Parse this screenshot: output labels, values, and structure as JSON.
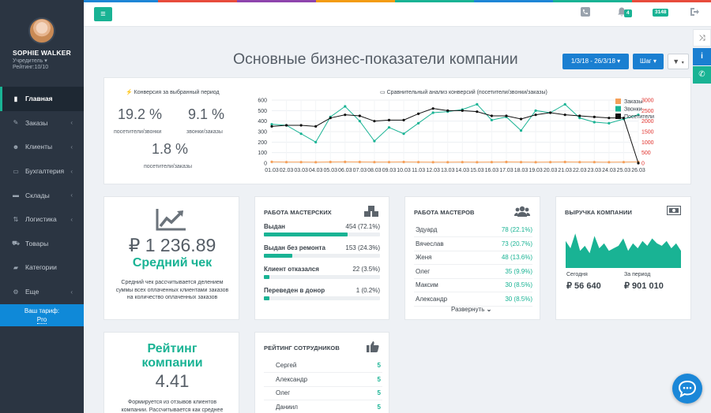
{
  "colors": {
    "accent": "#19b394",
    "blue": "#1a7fd1",
    "sidebar": "#2b3542",
    "orange": "#f5a05a",
    "black": "#111111",
    "red": "#e0302b"
  },
  "topstripe": [
    "#1e86d6",
    "#1e86d6",
    "#e74c3c",
    "#8e44ad",
    "#f39c12",
    "#19b394",
    "#1e86d6",
    "#19b394",
    "#e74c3c"
  ],
  "profile": {
    "name": "SOPHIE WALKER",
    "role": "Учредитель",
    "rating": "Рейтинг:10/10"
  },
  "nav": [
    {
      "label": "Главная",
      "icon": "bar-chart-icon",
      "active": true,
      "chev": false
    },
    {
      "label": "Заказы",
      "icon": "pencil-icon",
      "active": false,
      "chev": true
    },
    {
      "label": "Клиенты",
      "icon": "users-icon",
      "active": false,
      "chev": true
    },
    {
      "label": "Бухгалтерия",
      "icon": "inbox-icon",
      "active": false,
      "chev": true
    },
    {
      "label": "Склады",
      "icon": "hdd-icon",
      "active": false,
      "chev": true
    },
    {
      "label": "Логистика",
      "icon": "logistics-icon",
      "active": false,
      "chev": true
    },
    {
      "label": "Товары",
      "icon": "cart-icon",
      "active": false,
      "chev": false
    },
    {
      "label": "Категории",
      "icon": "folder-icon",
      "active": false,
      "chev": false
    },
    {
      "label": "Еще",
      "icon": "gear-icon",
      "active": false,
      "chev": true
    }
  ],
  "tariff": {
    "label": "Ваш тариф:",
    "plan": "Pro"
  },
  "topbar": {
    "notif_count": "4",
    "messages_count": "3148"
  },
  "page": {
    "title": "Основные бизнес-показатели компании",
    "date_range": "1/3/18 - 26/3/18",
    "step": "Шаг"
  },
  "conversion": {
    "title": "Конверсия за выбранный период",
    "k1": {
      "value": "19.2 %",
      "label": "посетители/звонки"
    },
    "k2": {
      "value": "9.1 %",
      "label": "звонки/заказы"
    },
    "k3": {
      "value": "1.8 %",
      "label": "посетители/заказы"
    }
  },
  "chart_data": {
    "type": "line",
    "title": "Сравнительный анализ конверсий (посетители/звонки/заказы)",
    "x": [
      "01.03",
      "02.03",
      "03.03",
      "04.03",
      "05.03",
      "06.03",
      "07.03",
      "08.03",
      "09.03",
      "10.03",
      "11.03",
      "12.03",
      "13.03",
      "14.03",
      "15.03",
      "16.03",
      "17.03",
      "18.03",
      "19.03",
      "20.03",
      "21.03",
      "22.03",
      "23.03",
      "24.03",
      "25.03",
      "26.03"
    ],
    "ylim": [
      0,
      600
    ],
    "y2lim": [
      0,
      3000
    ],
    "yticks": [
      0,
      100,
      200,
      300,
      400,
      500,
      600
    ],
    "y2ticks": [
      0,
      500,
      1000,
      1500,
      2000,
      2500,
      3000
    ],
    "series": [
      {
        "name": "Заказы",
        "axis": "right",
        "color": "#f5a05a",
        "values": [
          60,
          50,
          50,
          45,
          55,
          60,
          55,
          50,
          50,
          55,
          50,
          45,
          45,
          50,
          45,
          50,
          55,
          50,
          45,
          50,
          55,
          50,
          50,
          45,
          50,
          60
        ]
      },
      {
        "name": "Звонки",
        "axis": "left",
        "color": "#19b394",
        "values": [
          370,
          360,
          280,
          200,
          440,
          540,
          400,
          210,
          340,
          280,
          380,
          480,
          490,
          510,
          560,
          410,
          440,
          310,
          500,
          480,
          560,
          430,
          390,
          380,
          420,
          460
        ]
      },
      {
        "name": "Посетители",
        "axis": "right",
        "color": "#111111",
        "values": [
          1750,
          1800,
          1800,
          1750,
          2150,
          2300,
          2250,
          2000,
          2050,
          2050,
          2350,
          2600,
          2500,
          2500,
          2450,
          2250,
          2250,
          2100,
          2300,
          2400,
          2300,
          2250,
          2200,
          2150,
          2150,
          0
        ]
      }
    ]
  },
  "avg_check": {
    "value": "₽ 1 236.89",
    "title": "Средний чек",
    "desc": "Средний чек рассчитывается делением суммы всех оплаченных клиентами заказов на количество оплаченных заказов"
  },
  "workshops": {
    "title": "Работа мастерских",
    "rows": [
      {
        "label": "Выдан",
        "value": "454 (72.1%)",
        "pct": 72.1
      },
      {
        "label": "Выдан без ремонта",
        "value": "153 (24.3%)",
        "pct": 24.3
      },
      {
        "label": "Клиент отказался",
        "value": "22 (3.5%)",
        "pct": 3.5
      },
      {
        "label": "Переведен в донор",
        "value": "1 (0.2%)",
        "pct": 0.2
      }
    ]
  },
  "masters": {
    "title": "Работа мастеров",
    "rows": [
      {
        "name": "Эдуард",
        "value": "78 (22.1%)"
      },
      {
        "name": "Вячеслав",
        "value": "73 (20.7%)"
      },
      {
        "name": "Женя",
        "value": "48 (13.6%)"
      },
      {
        "name": "Олег",
        "value": "35 (9.9%)"
      },
      {
        "name": "Максим",
        "value": "30 (8.5%)"
      },
      {
        "name": "Александр",
        "value": "30 (8.5%)"
      }
    ],
    "expand": "Развернуть"
  },
  "revenue": {
    "title": "Выручка компании",
    "today_label": "Сегодня",
    "today": "₽ 56 640",
    "period_label": "За период",
    "period": "₽ 901 010",
    "spark": [
      55,
      40,
      70,
      35,
      45,
      30,
      65,
      40,
      50,
      35,
      40,
      45,
      60,
      35,
      50,
      40,
      55,
      45,
      60,
      50,
      45,
      55,
      40,
      50,
      35
    ]
  },
  "company_rating": {
    "title": "Рейтинг компании",
    "value": "4.41",
    "desc": "Формируется из отзывов клиентов компании. Рассчитывается как среднее всех оценок"
  },
  "staff_rating": {
    "title": "Рейтинг сотрудников",
    "rows": [
      {
        "name": "Сергей",
        "value": "5"
      },
      {
        "name": "Александр",
        "value": "5"
      },
      {
        "name": "Олег",
        "value": "5"
      },
      {
        "name": "Даниил",
        "value": "5"
      }
    ]
  }
}
